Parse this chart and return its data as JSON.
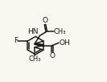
{
  "bg_color": "#faf7f0",
  "bond_color": "#1a1a1a",
  "bond_lw": 1.1,
  "font_size": 6.5,
  "font_color": "#1a1a1a",
  "xlim": [
    -1.5,
    8.5
  ],
  "ylim": [
    -1.5,
    7.5
  ]
}
